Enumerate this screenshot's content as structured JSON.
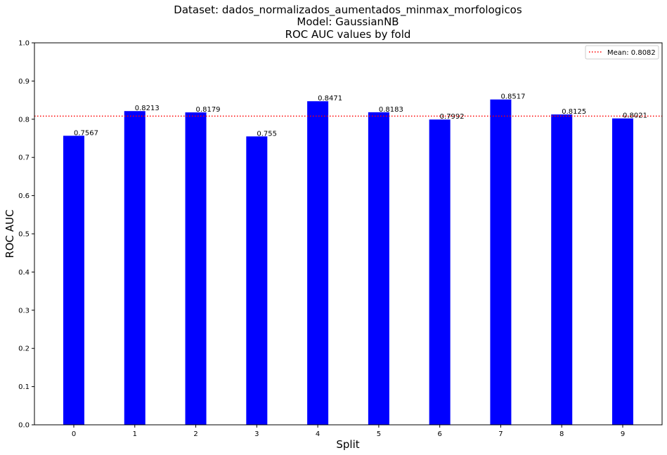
{
  "chart_data": {
    "type": "bar",
    "title_lines": [
      "Dataset: dados_normalizados_aumentados_minmax_morfologicos",
      "Model: GaussianNB",
      "ROC AUC values by fold"
    ],
    "xlabel": "Split",
    "ylabel": "ROC AUC",
    "categories": [
      "0",
      "1",
      "2",
      "3",
      "4",
      "5",
      "6",
      "7",
      "8",
      "9"
    ],
    "values": [
      0.7567,
      0.8213,
      0.8179,
      0.755,
      0.8471,
      0.8183,
      0.7992,
      0.8517,
      0.8125,
      0.8021
    ],
    "value_labels": [
      "0.7567",
      "0.8213",
      "0.8179",
      "0.755",
      "0.8471",
      "0.8183",
      "0.7992",
      "0.8517",
      "0.8125",
      "0.8021"
    ],
    "ylim": [
      0,
      1.0
    ],
    "yticks": [
      "0.0",
      "0.1",
      "0.2",
      "0.3",
      "0.4",
      "0.5",
      "0.6",
      "0.7",
      "0.8",
      "0.9",
      "1.0"
    ],
    "bar_color": "#0000ff",
    "mean": {
      "value": 0.8082,
      "label": "Mean: 0.8082",
      "color": "#ff0000",
      "style": "dotted"
    },
    "legend": {
      "placement": "top-right"
    },
    "grid": false
  }
}
